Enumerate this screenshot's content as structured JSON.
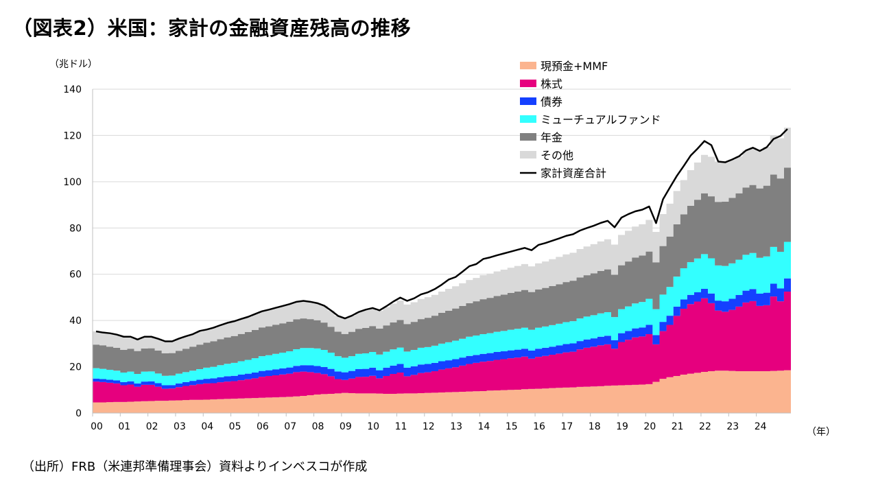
{
  "title": "（図表2）米国：家計の金融資産残高の推移",
  "source": "（出所）FRB（米連邦準備理事会）資料よりインベスコが作成",
  "chart_data": {
    "type": "area",
    "stacked": true,
    "y_unit_label": "（兆ドル）",
    "x_unit_label": "（年）",
    "ylim": [
      0,
      140
    ],
    "yticks": [
      0,
      20,
      40,
      60,
      80,
      100,
      120,
      140
    ],
    "xtick_labels": [
      "00",
      "01",
      "02",
      "03",
      "04",
      "05",
      "06",
      "07",
      "08",
      "09",
      "10",
      "11",
      "12",
      "13",
      "14",
      "15",
      "16",
      "17",
      "18",
      "19",
      "20",
      "21",
      "22",
      "23",
      "24"
    ],
    "x_start": 2000.0,
    "x_step": 0.25,
    "legend_position": "top-right",
    "series": [
      {
        "name": "現預金+MMF",
        "color": "#FBB48F",
        "values": [
          4.6,
          4.6,
          4.7,
          4.8,
          4.8,
          4.9,
          5.0,
          5.1,
          5.2,
          5.3,
          5.3,
          5.4,
          5.5,
          5.6,
          5.7,
          5.7,
          5.8,
          5.9,
          6.0,
          6.1,
          6.2,
          6.3,
          6.4,
          6.5,
          6.6,
          6.7,
          6.8,
          6.9,
          7.0,
          7.2,
          7.4,
          7.7,
          8.0,
          8.2,
          8.3,
          8.5,
          8.7,
          8.6,
          8.5,
          8.5,
          8.5,
          8.4,
          8.3,
          8.3,
          8.4,
          8.5,
          8.5,
          8.6,
          8.7,
          8.8,
          8.9,
          9.0,
          9.1,
          9.2,
          9.3,
          9.4,
          9.5,
          9.7,
          9.8,
          9.9,
          10.0,
          10.1,
          10.3,
          10.4,
          10.5,
          10.6,
          10.8,
          10.9,
          11.0,
          11.1,
          11.3,
          11.4,
          11.5,
          11.6,
          11.8,
          11.9,
          12.0,
          12.1,
          12.2,
          12.3,
          12.5,
          13.5,
          14.8,
          15.5,
          16.0,
          16.6,
          17.0,
          17.4,
          17.8,
          18.1,
          18.3,
          18.3,
          18.2,
          18.1,
          18.1,
          18.1,
          18.1,
          18.1,
          18.2,
          18.3,
          18.5
        ]
      },
      {
        "name": "株式",
        "color": "#E6007E",
        "values": [
          9.0,
          8.8,
          8.4,
          8.0,
          7.2,
          7.4,
          6.4,
          7.1,
          7.0,
          6.1,
          5.2,
          5.2,
          5.7,
          6.1,
          6.4,
          6.8,
          7.0,
          7.0,
          7.3,
          7.5,
          7.6,
          7.9,
          8.2,
          8.5,
          9.1,
          9.3,
          9.5,
          9.8,
          10.0,
          10.5,
          10.5,
          10.0,
          9.3,
          8.6,
          7.6,
          6.2,
          5.6,
          6.3,
          7.1,
          7.2,
          7.6,
          6.6,
          7.7,
          8.6,
          9.1,
          7.4,
          8.0,
          8.7,
          8.9,
          9.3,
          9.9,
          10.3,
          10.7,
          11.3,
          11.9,
          12.3,
          12.7,
          12.8,
          13.2,
          13.4,
          13.7,
          13.9,
          14.1,
          13.1,
          13.8,
          14.1,
          14.4,
          14.8,
          15.2,
          15.4,
          16.2,
          16.8,
          17.2,
          17.7,
          17.9,
          15.9,
          18.7,
          19.6,
          20.5,
          20.8,
          21.6,
          16.2,
          20.6,
          22.6,
          26.0,
          28.5,
          30.1,
          30.8,
          31.8,
          29.4,
          26.0,
          25.5,
          26.4,
          27.9,
          29.7,
          30.3,
          28.2,
          28.5,
          32.2,
          30.0,
          34.0
        ]
      },
      {
        "name": "債券",
        "color": "#1440FF",
        "values": [
          1.3,
          1.3,
          1.3,
          1.3,
          1.4,
          1.4,
          1.4,
          1.4,
          1.5,
          1.5,
          1.5,
          1.5,
          1.6,
          1.7,
          1.8,
          1.9,
          2.0,
          2.1,
          2.2,
          2.3,
          2.3,
          2.4,
          2.4,
          2.5,
          2.5,
          2.5,
          2.6,
          2.6,
          2.7,
          2.7,
          2.8,
          2.9,
          3.0,
          3.1,
          3.2,
          3.3,
          3.3,
          3.3,
          3.4,
          3.4,
          3.5,
          3.5,
          3.6,
          3.6,
          3.7,
          3.7,
          3.7,
          3.7,
          3.6,
          3.6,
          3.6,
          3.5,
          3.5,
          3.5,
          3.5,
          3.4,
          3.4,
          3.4,
          3.4,
          3.4,
          3.4,
          3.4,
          3.4,
          3.5,
          3.5,
          3.5,
          3.5,
          3.5,
          3.6,
          3.6,
          3.6,
          3.6,
          3.6,
          3.7,
          3.7,
          3.7,
          3.8,
          3.8,
          3.9,
          3.9,
          4.0,
          4.0,
          4.0,
          4.0,
          4.0,
          4.0,
          4.0,
          4.0,
          4.1,
          4.2,
          4.3,
          4.5,
          4.8,
          5.0,
          5.1,
          5.2,
          5.3,
          5.4,
          5.5,
          5.6,
          5.7
        ]
      },
      {
        "name": "ミューチュアルファンド",
        "color": "#33FFFF",
        "values": [
          4.5,
          4.4,
          4.3,
          4.2,
          4.1,
          4.2,
          4.1,
          4.3,
          4.3,
          4.2,
          4.1,
          4.1,
          4.2,
          4.3,
          4.4,
          4.6,
          4.8,
          5.0,
          5.2,
          5.4,
          5.6,
          5.8,
          6.0,
          6.2,
          6.4,
          6.5,
          6.7,
          6.8,
          7.0,
          7.2,
          7.4,
          7.5,
          7.6,
          7.4,
          7.0,
          6.6,
          6.3,
          6.4,
          6.6,
          6.7,
          6.8,
          6.8,
          6.9,
          7.0,
          7.1,
          7.0,
          7.1,
          7.2,
          7.3,
          7.4,
          7.6,
          7.8,
          8.0,
          8.1,
          8.3,
          8.4,
          8.5,
          8.6,
          8.7,
          8.8,
          8.9,
          9.0,
          9.1,
          9.0,
          9.1,
          9.2,
          9.3,
          9.4,
          9.5,
          9.6,
          9.8,
          9.9,
          10.0,
          10.1,
          10.2,
          10.0,
          10.4,
          10.6,
          10.8,
          11.0,
          11.3,
          11.2,
          11.8,
          12.4,
          13.0,
          13.5,
          14.1,
          14.6,
          15.0,
          15.2,
          15.2,
          15.3,
          15.3,
          15.3,
          15.5,
          15.6,
          15.5,
          15.7,
          15.9,
          15.8,
          15.8
        ]
      },
      {
        "name": "年金",
        "color": "#808080",
        "values": [
          10.2,
          10.2,
          10.0,
          9.9,
          9.8,
          9.9,
          9.9,
          10.0,
          10.0,
          9.9,
          9.7,
          9.7,
          9.9,
          10.1,
          10.4,
          10.6,
          10.8,
          11.0,
          11.2,
          11.4,
          11.6,
          11.8,
          12.0,
          12.2,
          12.4,
          12.5,
          12.6,
          12.7,
          12.8,
          12.9,
          12.8,
          12.5,
          12.2,
          11.8,
          11.2,
          10.6,
          10.3,
          10.5,
          10.8,
          11.0,
          11.2,
          11.2,
          11.4,
          11.7,
          11.9,
          11.9,
          12.1,
          12.4,
          12.7,
          13.0,
          13.3,
          13.6,
          13.9,
          14.2,
          14.5,
          14.8,
          15.1,
          15.3,
          15.5,
          15.7,
          15.9,
          16.1,
          16.3,
          16.3,
          16.5,
          16.7,
          16.9,
          17.1,
          17.3,
          17.5,
          17.7,
          17.9,
          18.1,
          18.3,
          18.5,
          18.3,
          19.0,
          19.4,
          19.8,
          20.1,
          20.4,
          20.2,
          21.0,
          21.8,
          22.6,
          23.3,
          24.4,
          25.4,
          26.3,
          26.8,
          27.5,
          27.8,
          28.3,
          28.7,
          29.1,
          29.4,
          30.0,
          30.6,
          31.3,
          31.7,
          32.1
        ]
      },
      {
        "name": "その他",
        "color": "#D9D9D9",
        "values": [
          5.7,
          5.5,
          5.8,
          5.7,
          5.7,
          5.2,
          5.0,
          5.1,
          5.0,
          5.1,
          5.2,
          5.1,
          5.3,
          5.4,
          5.4,
          5.6,
          5.7,
          5.9,
          6.1,
          6.3,
          6.4,
          6.5,
          6.6,
          6.9,
          7.0,
          7.2,
          7.3,
          7.5,
          7.6,
          7.6,
          7.6,
          7.5,
          7.4,
          7.3,
          7.0,
          6.8,
          6.7,
          7.0,
          7.3,
          7.6,
          7.8,
          7.7,
          7.9,
          8.1,
          8.4,
          8.4,
          8.5,
          8.7,
          8.9,
          9.0,
          9.2,
          9.5,
          9.6,
          9.8,
          10.0,
          10.1,
          10.4,
          10.5,
          10.6,
          10.8,
          10.9,
          11.1,
          11.2,
          11.1,
          11.3,
          11.4,
          11.6,
          11.8,
          12.0,
          12.1,
          12.3,
          12.4,
          12.6,
          12.8,
          13.0,
          13.0,
          13.1,
          13.3,
          13.4,
          13.5,
          13.7,
          13.2,
          13.8,
          14.2,
          14.4,
          14.8,
          15.4,
          16.1,
          16.6,
          17.1,
          17.4,
          17.0,
          16.6,
          16.0,
          16.0,
          16.1,
          16.4,
          16.8,
          17.0,
          17.4,
          17.3
        ]
      }
    ],
    "total": {
      "name": "家計資産合計",
      "color": "#000000",
      "values": [
        35.3,
        34.8,
        34.5,
        33.9,
        33.0,
        33.0,
        31.8,
        33.0,
        33.0,
        32.1,
        31.0,
        31.0,
        32.2,
        33.2,
        34.1,
        35.5,
        36.1,
        36.9,
        38.0,
        39.0,
        39.7,
        40.7,
        41.6,
        42.8,
        44.0,
        44.7,
        45.5,
        46.3,
        47.1,
        48.1,
        48.5,
        48.1,
        47.5,
        46.4,
        44.3,
        42.0,
        40.9,
        42.1,
        43.7,
        44.7,
        45.4,
        44.4,
        46.2,
        48.2,
        49.9,
        48.5,
        49.6,
        51.3,
        52.2,
        53.6,
        55.5,
        57.7,
        58.8,
        61.1,
        63.5,
        64.4,
        66.6,
        67.3,
        68.2,
        69.0,
        69.8,
        70.6,
        71.4,
        70.4,
        72.7,
        73.5,
        74.5,
        75.5,
        76.6,
        77.3,
        78.9,
        80.0,
        81.0,
        82.2,
        83.1,
        80.3,
        84.5,
        86.0,
        87.2,
        87.9,
        89.3,
        82.1,
        92.4,
        97.5,
        102.5,
        106.8,
        111.3,
        114.3,
        117.6,
        115.8,
        108.7,
        108.4,
        109.6,
        111.0,
        113.5,
        114.7,
        113.3,
        114.9,
        118.5,
        119.8,
        122.8
      ]
    }
  }
}
